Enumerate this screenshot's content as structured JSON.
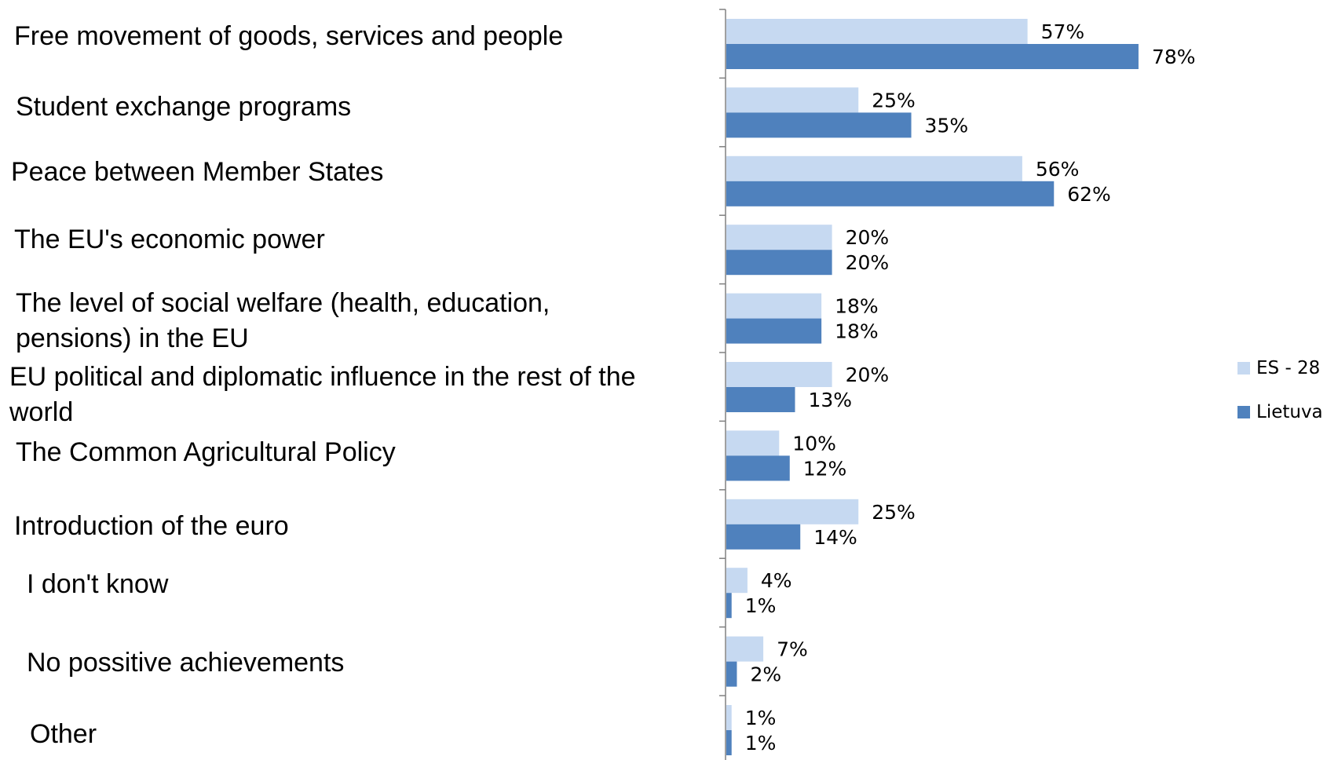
{
  "chart_data": {
    "type": "bar",
    "orientation": "horizontal",
    "categories": [
      "Free movement of goods, services and people",
      "Student exchange programs",
      "Peace between Member States",
      "The EU's economic power",
      "The level of social welfare (health, education,\npensions) in the EU",
      "EU political and diplomatic influence in the rest of the\nworld",
      "The Common Agricultural Policy",
      "Introduction of the euro",
      "I don't know",
      "No possitive achievements",
      "Other"
    ],
    "series": [
      {
        "name": "ES - 28",
        "color": "#c6d9f1",
        "values": [
          57,
          25,
          56,
          20,
          18,
          20,
          10,
          25,
          4,
          7,
          1
        ],
        "labels": [
          "57%",
          "25%",
          "56%",
          "20%",
          "18%",
          "20%",
          "10%",
          "25%",
          "4%",
          "7%",
          "1%"
        ]
      },
      {
        "name": "Lietuva",
        "color": "#4f81bd",
        "values": [
          78,
          35,
          62,
          20,
          18,
          13,
          12,
          14,
          1,
          2,
          1
        ],
        "labels": [
          "78%",
          "35%",
          "62%",
          "20%",
          "18%",
          "13%",
          "12%",
          "14%",
          "1%",
          "2%",
          "1%"
        ]
      }
    ],
    "xlim": [
      0,
      100
    ],
    "grid": false,
    "legend": "right",
    "axis_color": "#808080"
  }
}
